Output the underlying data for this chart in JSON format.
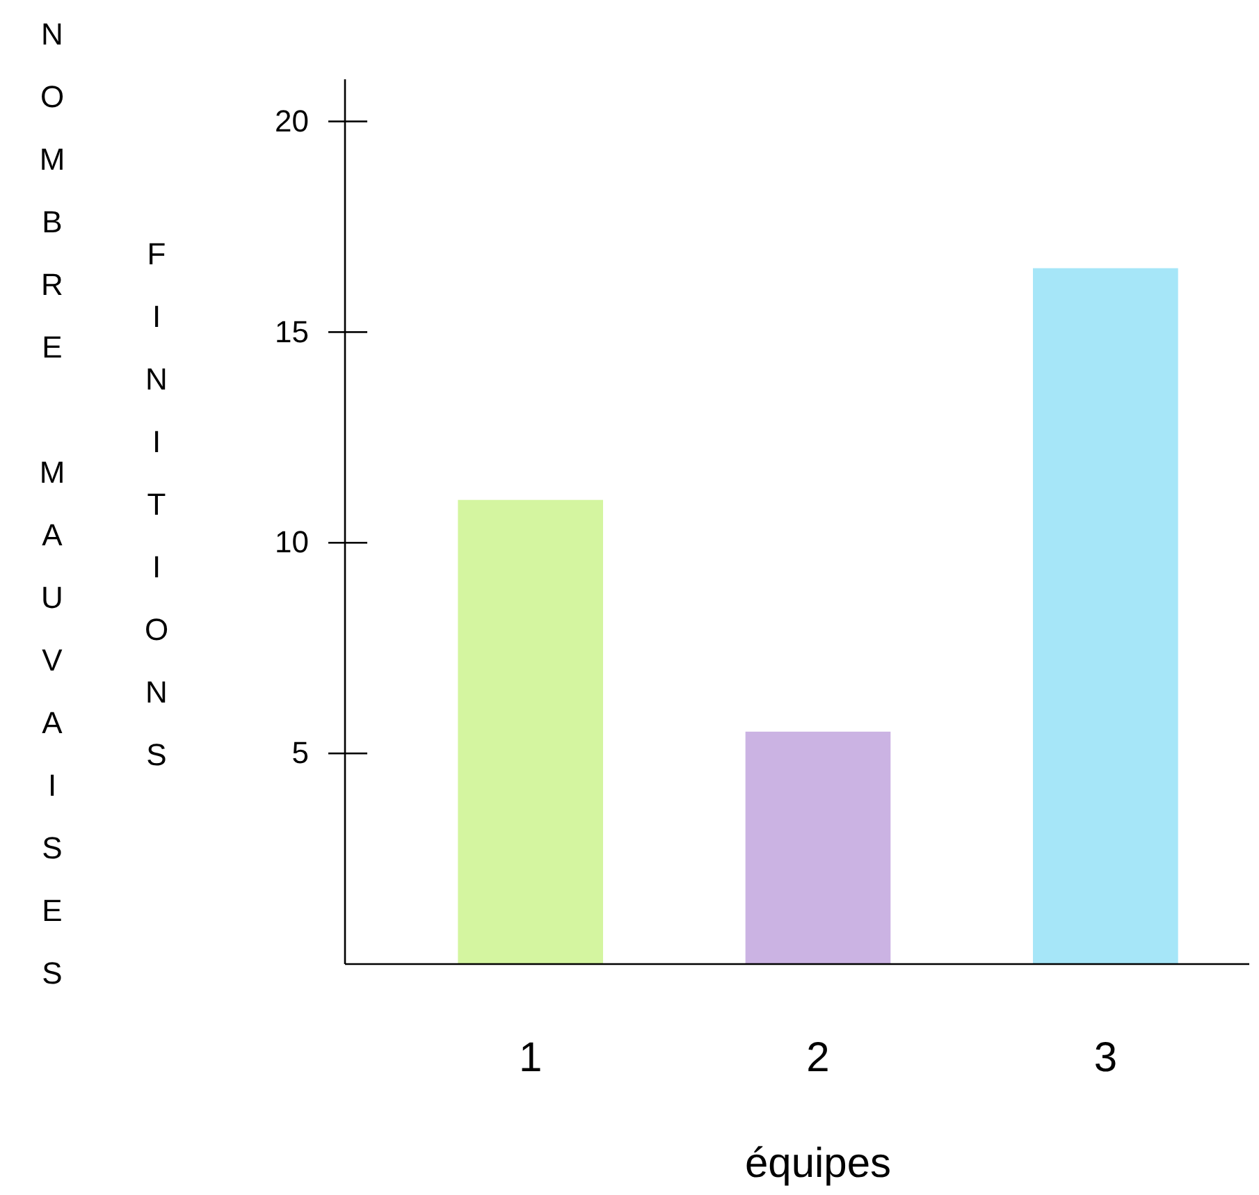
{
  "chart_data": {
    "type": "bar",
    "xlabel": "équipes",
    "ylabel": "NOMBRE MAUVAISES FINITIONS",
    "categories": [
      "1",
      "2",
      "3"
    ],
    "values": [
      11,
      5.5,
      16.5
    ],
    "colors": [
      "#d4f5a0",
      "#cbb3e3",
      "#a6e6f8"
    ],
    "ylim": [
      0,
      21
    ],
    "yticks": [
      5,
      10,
      15,
      20
    ],
    "grid": false
  }
}
